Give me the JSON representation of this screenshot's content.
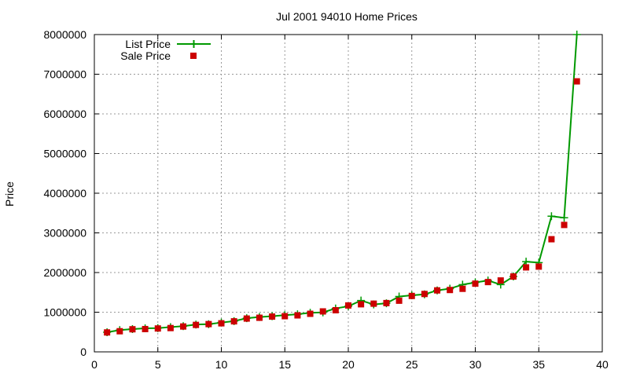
{
  "chart_data": {
    "type": "line",
    "title": "Jul 2001 94010 Home Prices",
    "xlabel": "",
    "ylabel": "Price",
    "xlim": [
      0,
      40
    ],
    "ylim": [
      0,
      8000000
    ],
    "x_ticks": [
      "0",
      "5",
      "10",
      "15",
      "20",
      "25",
      "30",
      "35",
      "40"
    ],
    "y_ticks": [
      "0",
      "1000000",
      "2000000",
      "3000000",
      "4000000",
      "5000000",
      "6000000",
      "7000000",
      "8000000"
    ],
    "grid": true,
    "legend_position": "top-left",
    "x": [
      1,
      2,
      3,
      4,
      5,
      6,
      7,
      8,
      9,
      10,
      11,
      12,
      13,
      14,
      15,
      16,
      17,
      18,
      19,
      20,
      21,
      22,
      23,
      24,
      25,
      26,
      27,
      28,
      29,
      30,
      31,
      32,
      33,
      34,
      35,
      36,
      37,
      38
    ],
    "series": [
      {
        "name": "List Price",
        "style": "line-with-plus-markers",
        "color": "#009900",
        "values": [
          495000,
          549000,
          575000,
          595000,
          599000,
          625000,
          649000,
          689000,
          699000,
          739000,
          775000,
          849000,
          879000,
          899000,
          925000,
          949000,
          985000,
          995000,
          1095000,
          1150000,
          1295000,
          1195000,
          1225000,
          1395000,
          1425000,
          1450000,
          1550000,
          1595000,
          1695000,
          1750000,
          1800000,
          1695000,
          1900000,
          2275000,
          2250000,
          3420000,
          3380000,
          8000000
        ]
      },
      {
        "name": "Sale Price",
        "style": "square-markers",
        "color": "#cc0000",
        "values": [
          490000,
          520000,
          570000,
          575000,
          590000,
          600000,
          640000,
          680000,
          700000,
          720000,
          770000,
          840000,
          860000,
          890000,
          900000,
          920000,
          960000,
          1020000,
          1050000,
          1170000,
          1200000,
          1215000,
          1230000,
          1290000,
          1410000,
          1460000,
          1550000,
          1560000,
          1590000,
          1720000,
          1760000,
          1800000,
          1900000,
          2130000,
          2150000,
          2840000,
          3200000,
          6820000
        ]
      }
    ]
  }
}
